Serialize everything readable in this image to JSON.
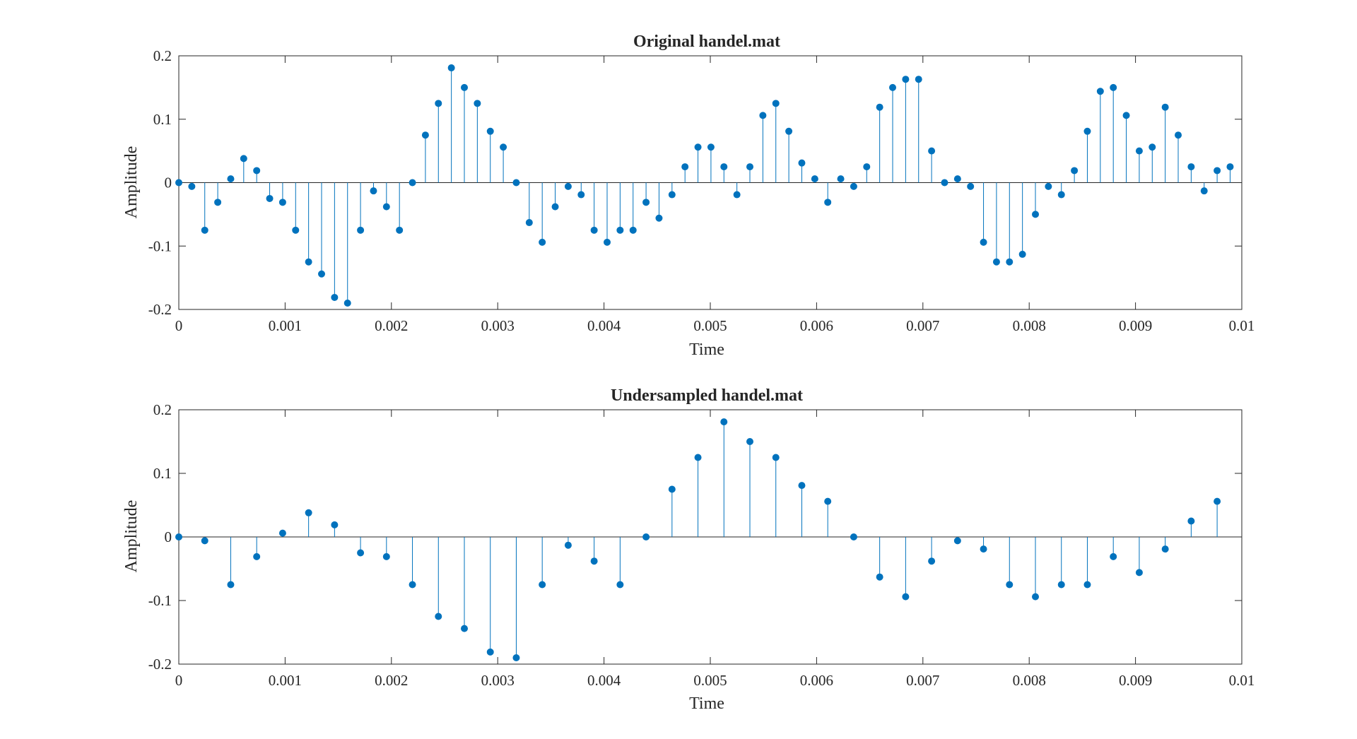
{
  "chart_data": [
    {
      "type": "stem",
      "title": "Original handel.mat",
      "xlabel": "Time",
      "ylabel": "Amplitude",
      "xlim": [
        0,
        0.01
      ],
      "ylim": [
        -0.2,
        0.2
      ],
      "xticks": [
        "0",
        "0.001",
        "0.002",
        "0.003",
        "0.004",
        "0.005",
        "0.006",
        "0.007",
        "0.008",
        "0.009",
        "0.01"
      ],
      "yticks": [
        "0.2",
        "0.1",
        "0",
        "-0.1",
        "-0.2"
      ],
      "x_start": 0,
      "x_step": 0.0001221,
      "values": [
        0,
        -0.006,
        -0.075,
        -0.031,
        0.006,
        0.038,
        0.019,
        -0.025,
        -0.031,
        -0.075,
        -0.125,
        -0.144,
        -0.181,
        -0.19,
        -0.075,
        -0.013,
        -0.038,
        -0.075,
        0,
        0.075,
        0.125,
        0.181,
        0.15,
        0.125,
        0.081,
        0.056,
        0,
        -0.063,
        -0.094,
        -0.038,
        -0.006,
        -0.019,
        -0.075,
        -0.094,
        -0.075,
        -0.075,
        -0.031,
        -0.056,
        -0.019,
        0.025,
        0.056,
        0.056,
        0.025,
        -0.019,
        0.025,
        0.106,
        0.125,
        0.081,
        0.031,
        0.006,
        -0.031,
        0.006,
        -0.006,
        0.025,
        0.119,
        0.15,
        0.163,
        0.163,
        0.05,
        0,
        0.006,
        -0.006,
        -0.094,
        -0.125,
        -0.125,
        -0.113,
        -0.05,
        -0.006,
        -0.019,
        0.019,
        0.081,
        0.144,
        0.15,
        0.106,
        0.05,
        0.056,
        0.119,
        0.075,
        0.025,
        -0.013,
        0.019,
        0.025
      ],
      "color": "#0072BD"
    },
    {
      "type": "stem",
      "title": "Undersampled handel.mat",
      "xlabel": "Time",
      "ylabel": "Amplitude",
      "xlim": [
        0,
        0.01
      ],
      "ylim": [
        -0.2,
        0.2
      ],
      "xticks": [
        "0",
        "0.001",
        "0.002",
        "0.003",
        "0.004",
        "0.005",
        "0.006",
        "0.007",
        "0.008",
        "0.009",
        "0.01"
      ],
      "yticks": [
        "0.2",
        "0.1",
        "0",
        "-0.1",
        "-0.2"
      ],
      "x_start": 0,
      "x_step": 0.0002442,
      "values": [
        0,
        -0.006,
        -0.075,
        -0.031,
        0.006,
        0.038,
        0.019,
        -0.025,
        -0.031,
        -0.075,
        -0.125,
        -0.144,
        -0.181,
        -0.19,
        -0.075,
        -0.013,
        -0.038,
        -0.075,
        0,
        0.075,
        0.125,
        0.181,
        0.15,
        0.125,
        0.081,
        0.056,
        0,
        -0.063,
        -0.094,
        -0.038,
        -0.006,
        -0.019,
        -0.075,
        -0.094,
        -0.075,
        -0.075,
        -0.031,
        -0.056,
        -0.019,
        0.025,
        0.056
      ],
      "color": "#0072BD"
    }
  ]
}
